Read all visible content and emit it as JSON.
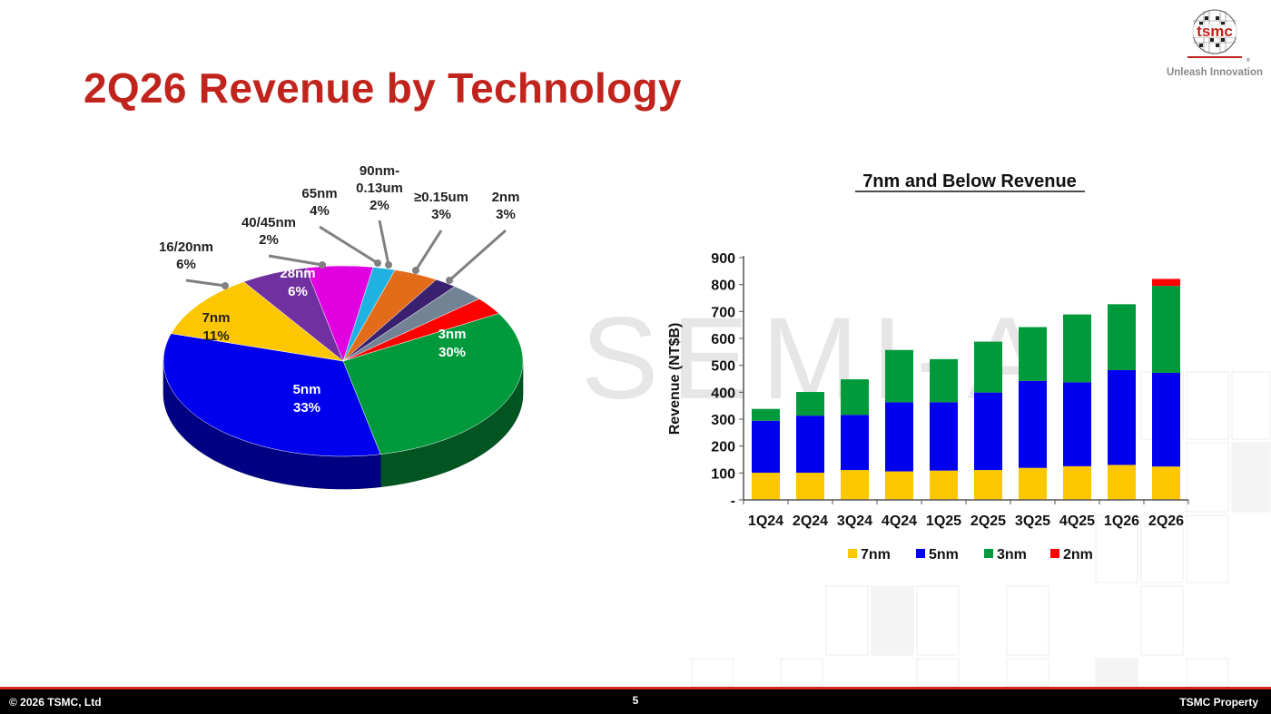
{
  "title": "2Q26 Revenue by Technology",
  "logo": {
    "text": "tsmc",
    "tagline": "Unleash Innovation"
  },
  "watermark": "SEMI-A",
  "footer": {
    "copyright": "© 2026 TSMC, Ltd",
    "page_number": "5",
    "property": "TSMC Property"
  },
  "colors": {
    "title": "#c0241c",
    "footer_bg": "#000000",
    "footer_line": "#d7261e"
  },
  "chart_data": [
    {
      "type": "pie",
      "title": "",
      "slices": [
        {
          "label_lines": [
            "3nm"
          ],
          "value": 30,
          "value_text": "30%",
          "color": "#009a3c"
        },
        {
          "label_lines": [
            "5nm"
          ],
          "value": 33,
          "value_text": "33%",
          "color": "#0000ee"
        },
        {
          "label_lines": [
            "7nm"
          ],
          "value": 11,
          "value_text": "11%",
          "color": "#fcc600"
        },
        {
          "label_lines": [
            "16/20nm"
          ],
          "value": 6,
          "value_text": "6%",
          "color": "#7030a0"
        },
        {
          "label_lines": [
            "28nm"
          ],
          "value": 6,
          "value_text": "6%",
          "color": "#e000e0"
        },
        {
          "label_lines": [
            "40/45nm"
          ],
          "value": 2,
          "value_text": "2%",
          "color": "#1fb2e0"
        },
        {
          "label_lines": [
            "65nm"
          ],
          "value": 4,
          "value_text": "4%",
          "color": "#e36c1a"
        },
        {
          "label_lines": [
            "90nm-",
            "0.13um"
          ],
          "value": 2,
          "value_text": "2%",
          "color": "#3a2170"
        },
        {
          "label_lines": [
            "≥0.15um"
          ],
          "value": 3,
          "value_text": "3%",
          "color": "#738396"
        },
        {
          "label_lines": [
            "2nm"
          ],
          "value": 3,
          "value_text": "3%",
          "color": "#ff0000"
        }
      ]
    },
    {
      "type": "bar",
      "stacked": true,
      "title": "7nm and Below Revenue",
      "xlabel": "",
      "ylabel": "Revenue (NT$B)",
      "ylim": [
        0,
        900
      ],
      "yticks": [
        0,
        100,
        200,
        300,
        400,
        500,
        600,
        700,
        800,
        900
      ],
      "ytick_labels": [
        "-",
        "100",
        "200",
        "300",
        "400",
        "500",
        "600",
        "700",
        "800",
        "900"
      ],
      "legend_position": "bottom",
      "categories": [
        "1Q24",
        "2Q24",
        "3Q24",
        "4Q24",
        "1Q25",
        "2Q25",
        "3Q25",
        "4Q25",
        "1Q26",
        "2Q26"
      ],
      "series": [
        {
          "name": "7nm",
          "color": "#fcc600",
          "values": [
            101,
            101,
            111,
            106,
            109,
            111,
            119,
            125,
            130,
            124
          ]
        },
        {
          "name": "5nm",
          "color": "#0000ee",
          "values": [
            193,
            212,
            205,
            257,
            254,
            288,
            323,
            312,
            352,
            348
          ]
        },
        {
          "name": "3nm",
          "color": "#009a3c",
          "values": [
            44,
            88,
            132,
            194,
            160,
            189,
            200,
            252,
            245,
            323
          ]
        },
        {
          "name": "2nm",
          "color": "#ff0000",
          "values": [
            0,
            0,
            0,
            0,
            0,
            0,
            0,
            0,
            0,
            26
          ]
        }
      ]
    }
  ]
}
